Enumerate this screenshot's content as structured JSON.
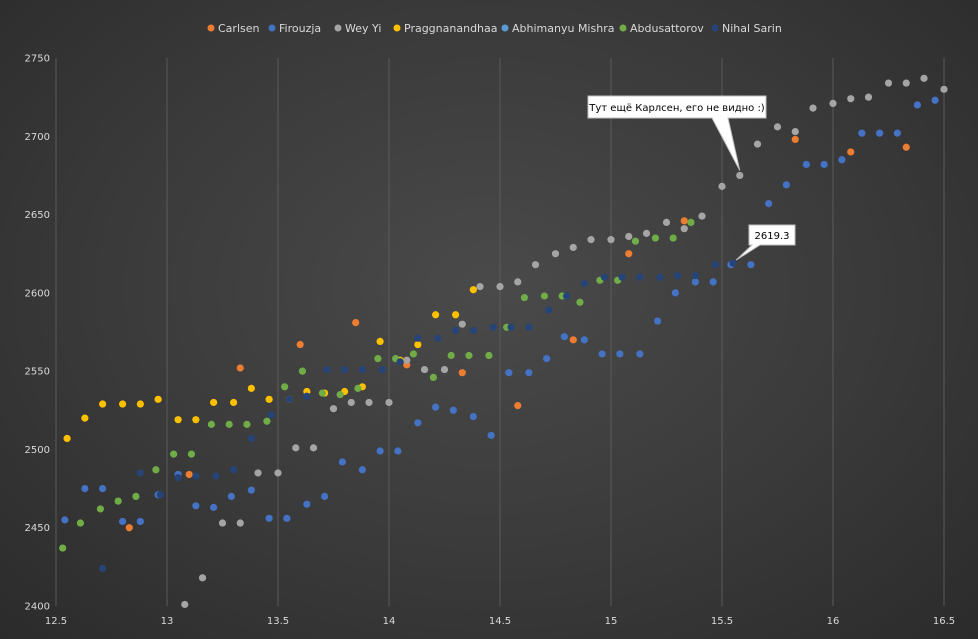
{
  "chart_data": {
    "type": "scatter",
    "xlim": [
      12.5,
      16.5
    ],
    "ylim": [
      2400,
      2750
    ],
    "x_ticks": [
      "12.5",
      "13",
      "13.5",
      "14",
      "14.5",
      "15",
      "15.5",
      "16",
      "16.5"
    ],
    "y_ticks": [
      "2400",
      "2450",
      "2500",
      "2550",
      "2600",
      "2650",
      "2700",
      "2750"
    ],
    "grid": "vertical",
    "legend_position": "top",
    "annotations": [
      {
        "text": "Тут ещё Карлсен, его не видно :)",
        "x": 15.58,
        "y": 2675
      },
      {
        "text": "2619.3",
        "x": 15.55,
        "y": 2619
      }
    ],
    "series": [
      {
        "name": "Carlsen",
        "color": "#ed7d31",
        "points": [
          [
            12.83,
            2450
          ],
          [
            13.1,
            2484
          ],
          [
            13.33,
            2552
          ],
          [
            13.6,
            2567
          ],
          [
            13.85,
            2581
          ],
          [
            14.08,
            2554
          ],
          [
            14.33,
            2549
          ],
          [
            14.58,
            2528
          ],
          [
            14.83,
            2570
          ],
          [
            15.08,
            2625
          ],
          [
            15.33,
            2646
          ],
          [
            15.83,
            2698
          ],
          [
            16.08,
            2690
          ],
          [
            16.33,
            2693
          ]
        ]
      },
      {
        "name": "Firouzja",
        "color": "#4472c4",
        "points": [
          [
            12.54,
            2455
          ],
          [
            12.63,
            2475
          ],
          [
            12.71,
            2475
          ],
          [
            12.8,
            2454
          ],
          [
            12.88,
            2454
          ],
          [
            12.96,
            2471
          ],
          [
            13.05,
            2484
          ],
          [
            13.13,
            2464
          ],
          [
            13.21,
            2463
          ],
          [
            13.29,
            2470
          ],
          [
            13.38,
            2474
          ],
          [
            13.46,
            2456
          ],
          [
            13.54,
            2456
          ],
          [
            13.63,
            2465
          ],
          [
            13.71,
            2470
          ],
          [
            13.79,
            2492
          ],
          [
            13.88,
            2487
          ],
          [
            13.96,
            2499
          ],
          [
            14.04,
            2499
          ],
          [
            14.13,
            2517
          ],
          [
            14.21,
            2527
          ],
          [
            14.29,
            2525
          ],
          [
            14.38,
            2521
          ],
          [
            14.46,
            2509
          ],
          [
            14.54,
            2549
          ],
          [
            14.63,
            2549
          ],
          [
            14.71,
            2558
          ],
          [
            14.79,
            2572
          ],
          [
            14.88,
            2570
          ],
          [
            14.96,
            2561
          ],
          [
            15.04,
            2561
          ],
          [
            15.13,
            2561
          ],
          [
            15.21,
            2582
          ],
          [
            15.29,
            2600
          ],
          [
            15.38,
            2607
          ],
          [
            15.46,
            2607
          ],
          [
            15.54,
            2618
          ],
          [
            15.63,
            2618
          ],
          [
            15.71,
            2657
          ],
          [
            15.79,
            2669
          ],
          [
            15.88,
            2682
          ],
          [
            15.96,
            2682
          ],
          [
            16.04,
            2685
          ],
          [
            16.13,
            2702
          ],
          [
            16.21,
            2702
          ],
          [
            16.29,
            2702
          ],
          [
            16.38,
            2720
          ],
          [
            16.46,
            2723
          ]
        ]
      },
      {
        "name": "Wey Yi",
        "color": "#a5a5a5",
        "points": [
          [
            13.08,
            2401
          ],
          [
            13.16,
            2418
          ],
          [
            13.25,
            2453
          ],
          [
            13.33,
            2453
          ],
          [
            13.41,
            2485
          ],
          [
            13.5,
            2485
          ],
          [
            13.58,
            2501
          ],
          [
            13.66,
            2501
          ],
          [
            13.75,
            2526
          ],
          [
            13.83,
            2530
          ],
          [
            13.91,
            2530
          ],
          [
            14,
            2530
          ],
          [
            14.08,
            2557
          ],
          [
            14.16,
            2551
          ],
          [
            14.25,
            2551
          ],
          [
            14.33,
            2580
          ],
          [
            14.41,
            2604
          ],
          [
            14.5,
            2604
          ],
          [
            14.58,
            2607
          ],
          [
            14.66,
            2618
          ],
          [
            14.75,
            2625
          ],
          [
            14.83,
            2629
          ],
          [
            14.91,
            2634
          ],
          [
            15,
            2634
          ],
          [
            15.08,
            2636
          ],
          [
            15.16,
            2638
          ],
          [
            15.25,
            2645
          ],
          [
            15.33,
            2641
          ],
          [
            15.41,
            2649
          ],
          [
            15.5,
            2668
          ],
          [
            15.58,
            2675
          ],
          [
            15.66,
            2695
          ],
          [
            15.75,
            2706
          ],
          [
            15.83,
            2703
          ],
          [
            15.91,
            2718
          ],
          [
            16,
            2721
          ],
          [
            16.08,
            2724
          ],
          [
            16.16,
            2725
          ],
          [
            16.25,
            2734
          ],
          [
            16.33,
            2734
          ],
          [
            16.41,
            2737
          ],
          [
            16.5,
            2730
          ]
        ]
      },
      {
        "name": "Praggnanandhaa",
        "color": "#ffc000",
        "points": [
          [
            12.55,
            2507
          ],
          [
            12.63,
            2520
          ],
          [
            12.71,
            2529
          ],
          [
            12.8,
            2529
          ],
          [
            12.88,
            2529
          ],
          [
            12.96,
            2532
          ],
          [
            13.05,
            2519
          ],
          [
            13.13,
            2519
          ],
          [
            13.21,
            2530
          ],
          [
            13.3,
            2530
          ],
          [
            13.38,
            2539
          ],
          [
            13.46,
            2532
          ],
          [
            13.55,
            2532
          ],
          [
            13.63,
            2537
          ],
          [
            13.71,
            2536
          ],
          [
            13.8,
            2537
          ],
          [
            13.88,
            2540
          ],
          [
            13.96,
            2569
          ],
          [
            14.05,
            2557
          ],
          [
            14.13,
            2567
          ],
          [
            14.21,
            2586
          ],
          [
            14.3,
            2586
          ],
          [
            14.38,
            2602
          ]
        ]
      },
      {
        "name": "Abhimanyu Mishra",
        "color": "#5b9bd5",
        "points": []
      },
      {
        "name": "Abdusattorov",
        "color": "#70ad47",
        "points": [
          [
            12.53,
            2437
          ],
          [
            12.61,
            2453
          ],
          [
            12.7,
            2462
          ],
          [
            12.78,
            2467
          ],
          [
            12.86,
            2470
          ],
          [
            12.95,
            2487
          ],
          [
            13.03,
            2497
          ],
          [
            13.11,
            2497
          ],
          [
            13.2,
            2516
          ],
          [
            13.28,
            2516
          ],
          [
            13.36,
            2516
          ],
          [
            13.45,
            2518
          ],
          [
            13.53,
            2540
          ],
          [
            13.61,
            2550
          ],
          [
            13.7,
            2536
          ],
          [
            13.78,
            2535
          ],
          [
            13.86,
            2539
          ],
          [
            13.95,
            2558
          ],
          [
            14.03,
            2558
          ],
          [
            14.11,
            2561
          ],
          [
            14.2,
            2546
          ],
          [
            14.28,
            2560
          ],
          [
            14.36,
            2560
          ],
          [
            14.45,
            2560
          ],
          [
            14.53,
            2578
          ],
          [
            14.61,
            2597
          ],
          [
            14.7,
            2598
          ],
          [
            14.78,
            2598
          ],
          [
            14.86,
            2594
          ],
          [
            14.95,
            2608
          ],
          [
            15.03,
            2608
          ],
          [
            15.11,
            2633
          ],
          [
            15.2,
            2635
          ],
          [
            15.28,
            2635
          ],
          [
            15.36,
            2645
          ]
        ]
      },
      {
        "name": "Nihal Sarin",
        "color": "#264478",
        "points": [
          [
            12.71,
            2424
          ],
          [
            12.88,
            2485
          ],
          [
            12.97,
            2471
          ],
          [
            13.05,
            2482
          ],
          [
            13.13,
            2483
          ],
          [
            13.22,
            2483
          ],
          [
            13.3,
            2487
          ],
          [
            13.38,
            2507
          ],
          [
            13.47,
            2522
          ],
          [
            13.55,
            2532
          ],
          [
            13.63,
            2534
          ],
          [
            13.72,
            2551
          ],
          [
            13.8,
            2551
          ],
          [
            13.88,
            2551
          ],
          [
            13.97,
            2551
          ],
          [
            14.05,
            2556
          ],
          [
            14.13,
            2571
          ],
          [
            14.22,
            2571
          ],
          [
            14.3,
            2576
          ],
          [
            14.38,
            2576
          ],
          [
            14.47,
            2578
          ],
          [
            14.55,
            2578
          ],
          [
            14.63,
            2578
          ],
          [
            14.72,
            2589
          ],
          [
            14.8,
            2598
          ],
          [
            14.88,
            2606
          ],
          [
            14.97,
            2610
          ],
          [
            15.05,
            2610
          ],
          [
            15.13,
            2610
          ],
          [
            15.22,
            2610
          ],
          [
            15.3,
            2611
          ],
          [
            15.38,
            2611
          ],
          [
            15.47,
            2618
          ],
          [
            15.55,
            2619
          ]
        ]
      }
    ]
  }
}
